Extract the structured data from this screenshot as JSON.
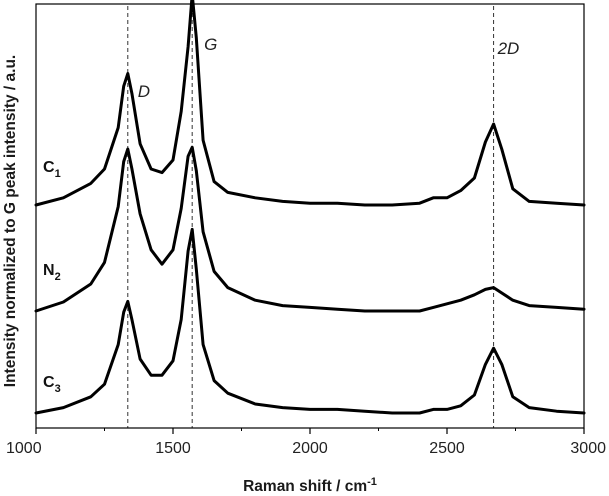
{
  "chart_data": {
    "type": "line",
    "title": "",
    "xlabel": "Raman shift / cm",
    "xlabel_superscript": "-1",
    "ylabel": "Intensity normalized to G peak intensity / a.u.",
    "xlim": [
      1000,
      3000
    ],
    "ylim": [
      0,
      3
    ],
    "x_ticks": [
      "1000",
      "1500",
      "2000",
      "2500",
      "3000"
    ],
    "grid": false,
    "legend": "none",
    "line_color": "#000000",
    "reference_lines": [
      {
        "label": "D",
        "x": 1335
      },
      {
        "label": "G",
        "x": 1570
      },
      {
        "label": "2D",
        "x": 2670
      }
    ],
    "series": [
      {
        "name": "C",
        "subscript": "1",
        "offset": 2.0,
        "x": [
          1000,
          1100,
          1200,
          1250,
          1300,
          1320,
          1335,
          1350,
          1380,
          1420,
          1460,
          1500,
          1530,
          1555,
          1570,
          1585,
          1610,
          1650,
          1700,
          1800,
          1900,
          2000,
          2100,
          2200,
          2300,
          2400,
          2450,
          2500,
          2550,
          2600,
          2640,
          2670,
          2700,
          2740,
          2800,
          2900,
          3000
        ],
        "y": [
          0.0,
          0.03,
          0.09,
          0.16,
          0.38,
          0.56,
          0.62,
          0.52,
          0.3,
          0.21,
          0.21,
          0.29,
          0.52,
          0.9,
          1.02,
          0.8,
          0.38,
          0.18,
          0.11,
          0.05,
          0.03,
          0.02,
          0.02,
          0.01,
          0.0,
          0.0,
          0.02,
          0.02,
          0.04,
          0.1,
          0.27,
          0.36,
          0.27,
          0.09,
          0.03,
          0.01,
          0.0
        ]
      },
      {
        "name": "N",
        "subscript": "2",
        "offset": 1.0,
        "x": [
          1000,
          1100,
          1200,
          1250,
          1300,
          1320,
          1335,
          1350,
          1380,
          1420,
          1460,
          1500,
          1530,
          1555,
          1570,
          1585,
          1610,
          1650,
          1700,
          1800,
          1900,
          2000,
          2100,
          2200,
          2300,
          2400,
          2450,
          2500,
          2550,
          2600,
          2640,
          2670,
          2700,
          2740,
          2800,
          2900,
          3000
        ],
        "y": [
          0.0,
          0.05,
          0.15,
          0.27,
          0.58,
          0.83,
          0.9,
          0.79,
          0.54,
          0.34,
          0.26,
          0.34,
          0.57,
          0.86,
          0.91,
          0.78,
          0.44,
          0.22,
          0.13,
          0.06,
          0.03,
          0.02,
          0.01,
          0.0,
          0.0,
          0.0,
          0.02,
          0.04,
          0.06,
          0.09,
          0.12,
          0.13,
          0.1,
          0.06,
          0.03,
          0.02,
          0.01
        ]
      },
      {
        "name": "C",
        "subscript": "3",
        "offset": 0.0,
        "x": [
          1000,
          1100,
          1200,
          1250,
          1300,
          1320,
          1335,
          1350,
          1380,
          1420,
          1460,
          1500,
          1530,
          1555,
          1570,
          1585,
          1610,
          1650,
          1700,
          1800,
          1900,
          2000,
          2100,
          2200,
          2300,
          2400,
          2450,
          2500,
          2550,
          2600,
          2640,
          2670,
          2700,
          2740,
          2800,
          2900,
          3000
        ],
        "y": [
          0.0,
          0.04,
          0.12,
          0.2,
          0.43,
          0.66,
          0.73,
          0.62,
          0.34,
          0.2,
          0.18,
          0.25,
          0.52,
          0.88,
          1.17,
          0.93,
          0.36,
          0.13,
          0.07,
          0.04,
          0.02,
          0.01,
          0.01,
          0.0,
          0.0,
          0.01,
          0.04,
          0.04,
          0.08,
          0.15,
          0.35,
          0.45,
          0.31,
          0.09,
          0.02,
          0.01,
          0.0
        ]
      }
    ]
  }
}
